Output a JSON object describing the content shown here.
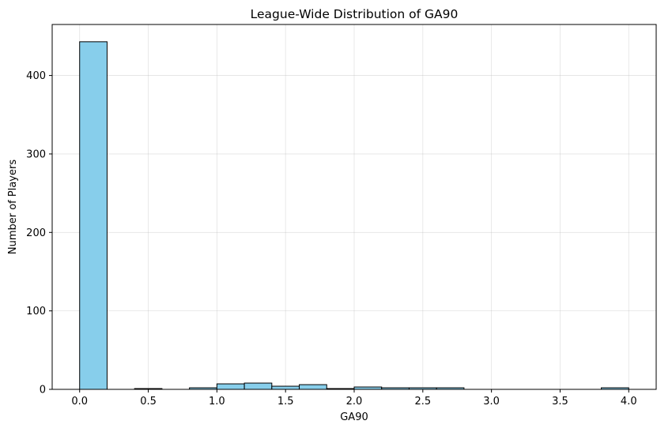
{
  "chart_data": {
    "type": "bar",
    "title": "League-Wide Distribution of GA90",
    "xlabel": "GA90",
    "ylabel": "Number of Players",
    "xlim": [
      -0.2,
      4.2
    ],
    "ylim": [
      0,
      465
    ],
    "xticks": [
      "0.0",
      "0.5",
      "1.0",
      "1.5",
      "2.0",
      "2.5",
      "3.0",
      "3.5",
      "4.0"
    ],
    "yticks": [
      "0",
      "100",
      "200",
      "300",
      "400"
    ],
    "grid": true,
    "bin_edges": [
      0.0,
      0.2,
      0.4,
      0.6,
      0.8,
      1.0,
      1.2,
      1.4,
      1.6,
      1.8,
      2.0,
      2.2,
      2.4,
      2.6,
      2.8,
      3.0,
      3.2,
      3.4,
      3.6,
      3.8,
      4.0
    ],
    "values": [
      443,
      0,
      1,
      0,
      2,
      7,
      8,
      4,
      6,
      1,
      3,
      2,
      2,
      2,
      0,
      0,
      0,
      0,
      0,
      2
    ],
    "colors": {
      "bar_fill": "#87ceeb",
      "bar_edge": "#000000",
      "grid": "#b0b0b0"
    }
  }
}
